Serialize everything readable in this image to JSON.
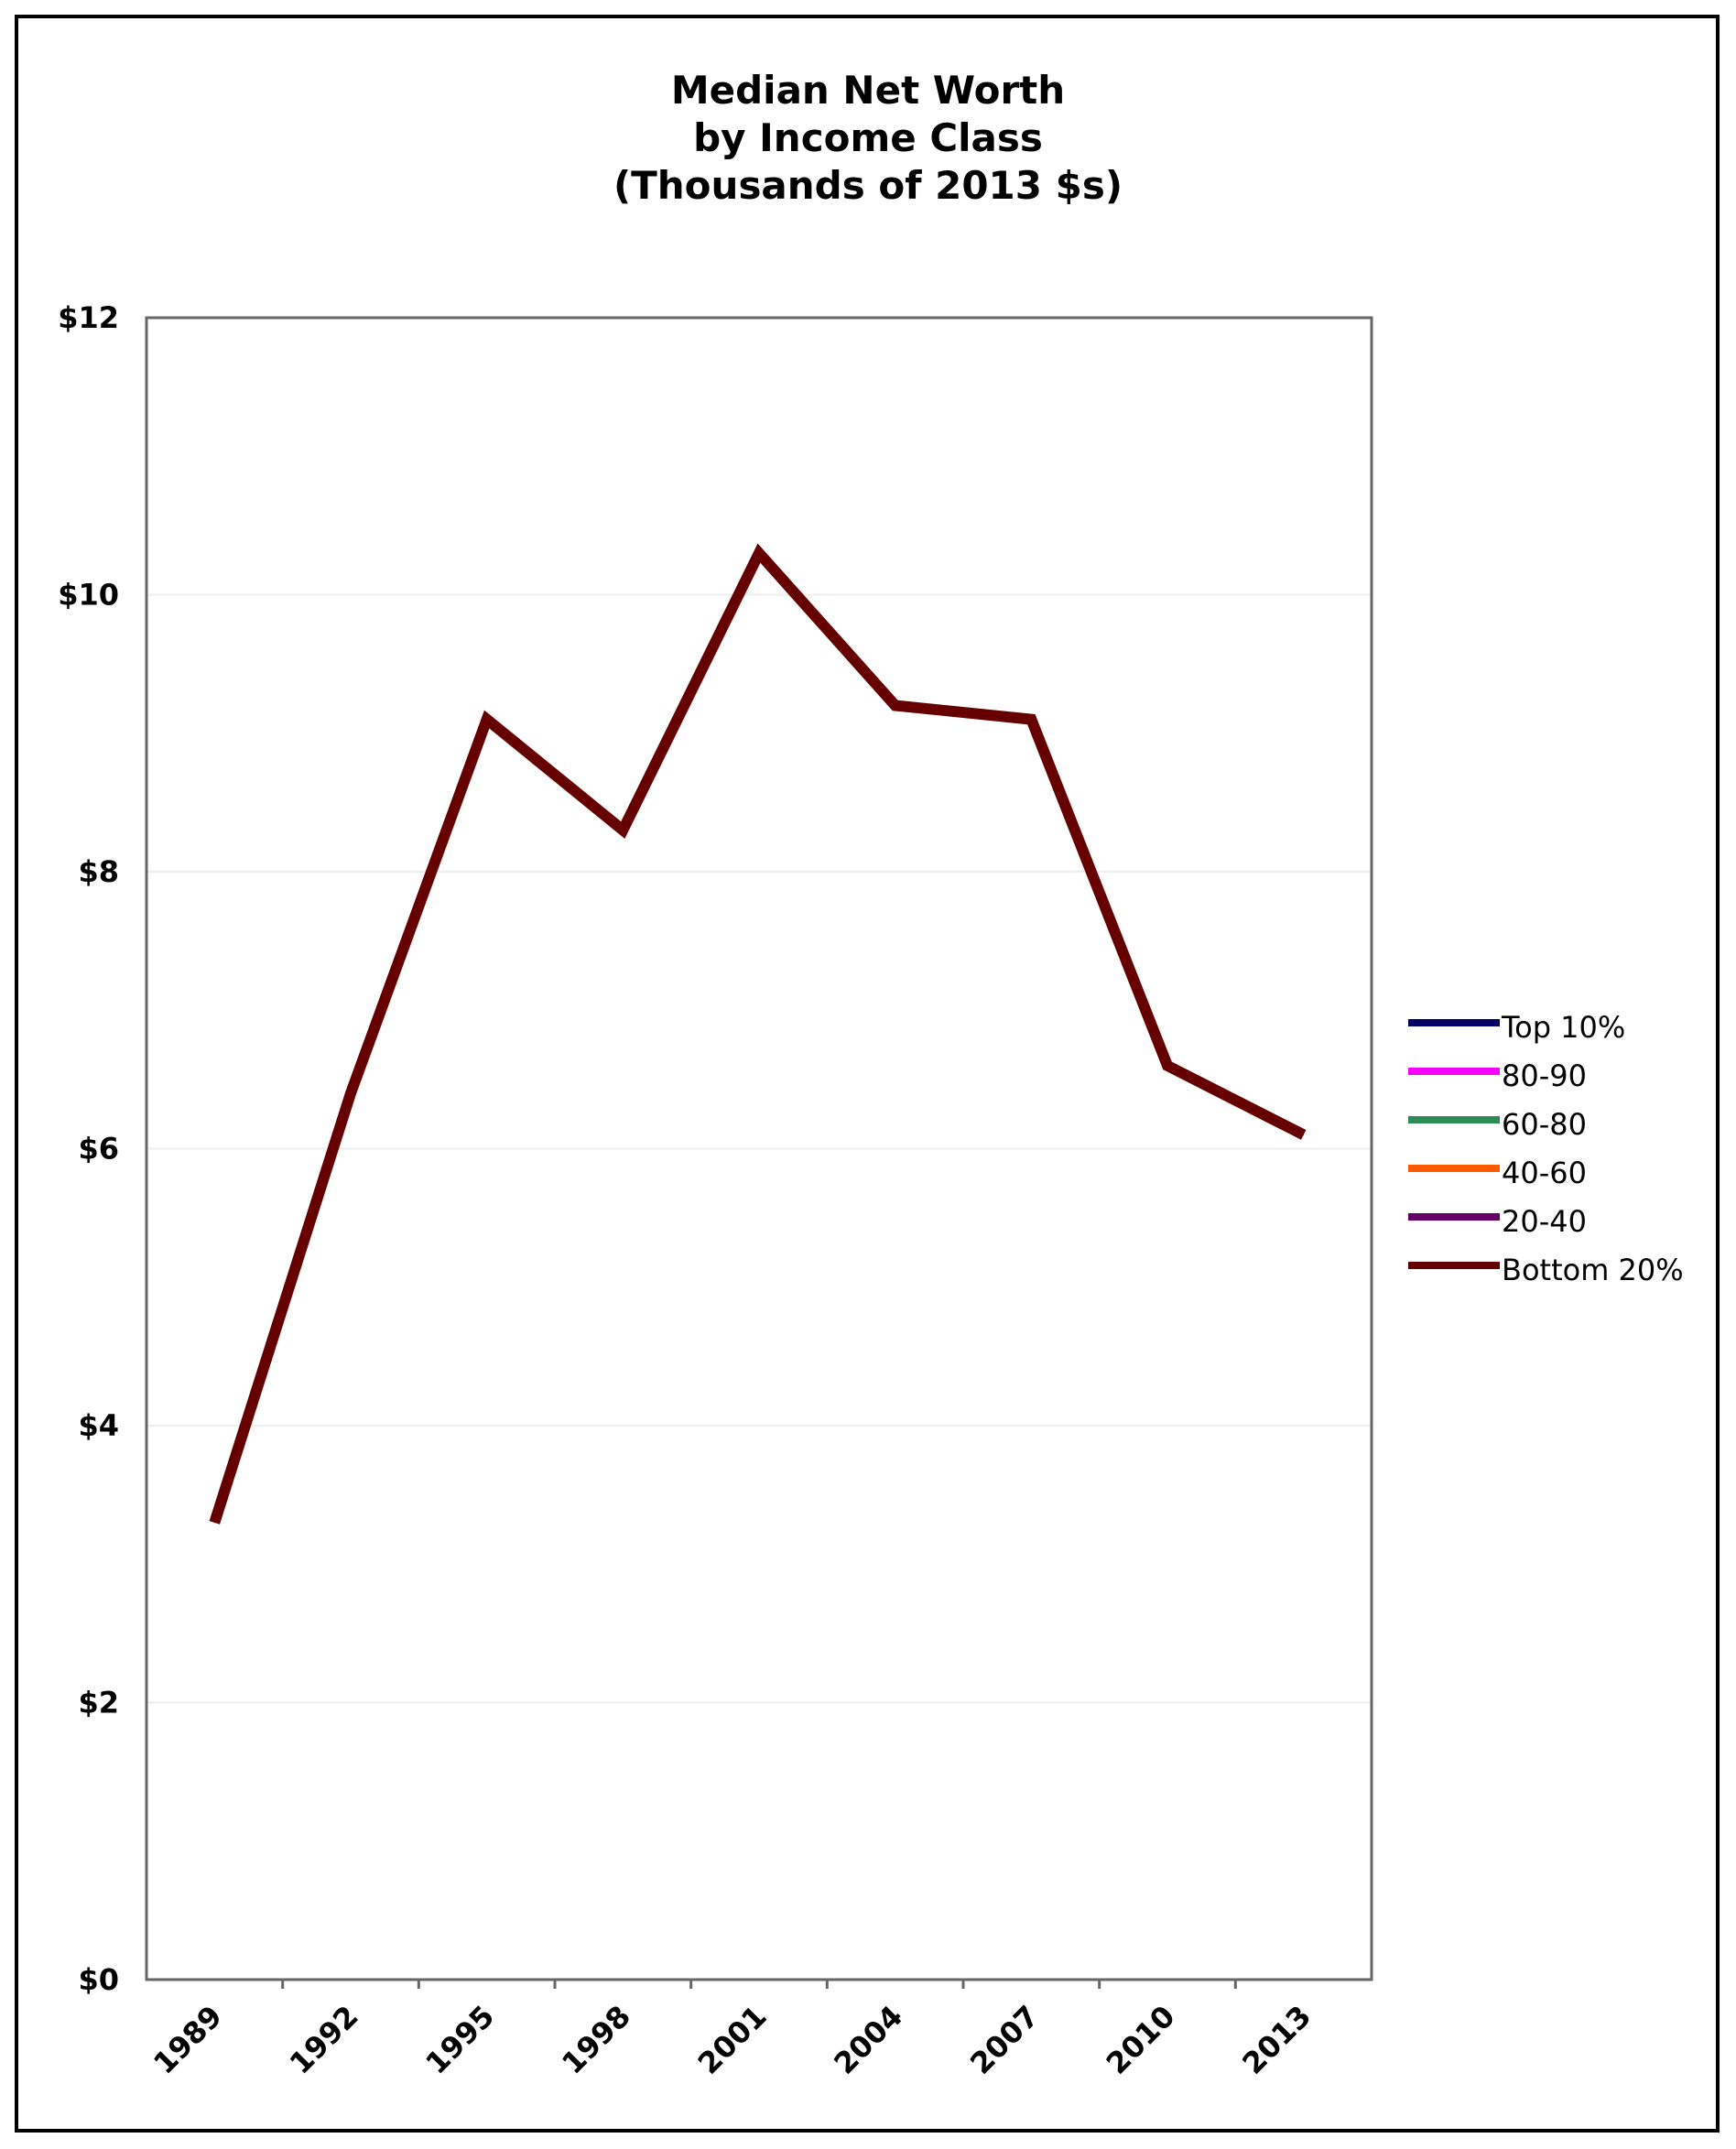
{
  "chart_data": {
    "type": "line",
    "title_lines": [
      "Median Net Worth",
      "by Income Class",
      "(Thousands of 2013 $s)"
    ],
    "xlabel": "",
    "ylabel": "",
    "ylim": [
      0,
      12
    ],
    "y_ticks": [
      0,
      2,
      4,
      6,
      8,
      10,
      12
    ],
    "y_tick_labels": [
      "$0",
      "$2",
      "$4",
      "$6",
      "$8",
      "$10",
      "$12"
    ],
    "x_tick_labels": [
      "1989",
      "1992",
      "1995",
      "1998",
      "2001",
      "2004",
      "2007",
      "2010",
      "2013"
    ],
    "grid": "horizontal",
    "legend_position": "right",
    "series": [
      {
        "name": "Top 10%",
        "color": "#000066",
        "values": []
      },
      {
        "name": "80-90",
        "color": "#ff00ff",
        "values": []
      },
      {
        "name": "60-80",
        "color": "#2e8b57",
        "values": []
      },
      {
        "name": "40-60",
        "color": "#ff5a00",
        "values": []
      },
      {
        "name": "20-40",
        "color": "#660066",
        "values": []
      },
      {
        "name": "Bottom 20%",
        "color": "#660000",
        "values": [
          3.3,
          6.4,
          9.1,
          8.3,
          10.3,
          9.2,
          9.1,
          6.6,
          6.1
        ]
      }
    ]
  }
}
